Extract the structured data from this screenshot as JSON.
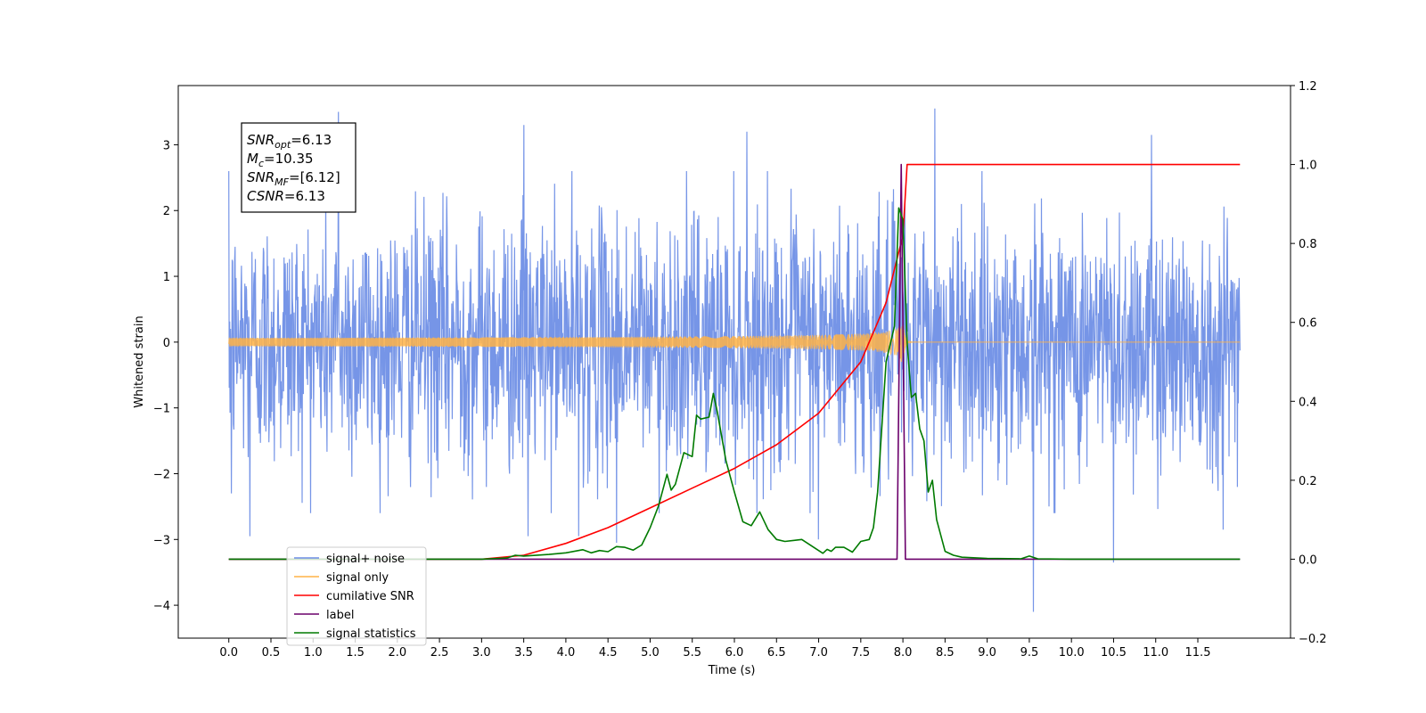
{
  "chart_data": {
    "type": "line",
    "xlabel": "Time (s)",
    "ylabel": "Whitened strain",
    "xlim": [
      -0.6,
      12.6
    ],
    "ylim": [
      -4.5,
      3.9
    ],
    "y2lim": [
      -0.2,
      1.2
    ],
    "x_ticks": [
      0.0,
      0.5,
      1.0,
      1.5,
      2.0,
      2.5,
      3.0,
      3.5,
      4.0,
      4.5,
      5.0,
      5.5,
      6.0,
      6.5,
      7.0,
      7.5,
      8.0,
      8.5,
      9.0,
      9.5,
      10.0,
      10.5,
      11.0,
      11.5
    ],
    "x_tick_labels": [
      "0.0",
      "0.5",
      "1.0",
      "1.5",
      "2.0",
      "2.5",
      "3.0",
      "3.5",
      "4.0",
      "4.5",
      "5.0",
      "5.5",
      "6.0",
      "6.5",
      "7.0",
      "7.5",
      "8.0",
      "8.5",
      "9.0",
      "9.5",
      "10.0",
      "10.5",
      "11.0",
      "11.5"
    ],
    "y_ticks": [
      -4,
      -3,
      -2,
      -1,
      0,
      1,
      2,
      3
    ],
    "y_tick_labels": [
      "−4",
      "−3",
      "−2",
      "−1",
      "0",
      "1",
      "2",
      "3"
    ],
    "y2_ticks": [
      -0.2,
      0.0,
      0.2,
      0.4,
      0.6,
      0.8,
      1.0,
      1.2
    ],
    "y2_tick_labels": [
      "−0.2",
      "0.0",
      "0.2",
      "0.4",
      "0.6",
      "0.8",
      "1.0",
      "1.2"
    ],
    "annotation": {
      "lines": [
        {
          "base": "SNR",
          "sub": "opt",
          "rest": "=6.13"
        },
        {
          "base": "M",
          "sub": "c",
          "rest": "=10.35"
        },
        {
          "base": "SNR",
          "sub": "MF",
          "rest": "=[6.12]"
        },
        {
          "base": "CSNR",
          "sub": "",
          "rest": "=6.13"
        }
      ]
    },
    "legend": {
      "placement": "lower-left",
      "entries": [
        "signal+ noise",
        "signal only",
        "cumilative SNR",
        "label",
        "signal statistics"
      ]
    },
    "series": [
      {
        "name": "signal+ noise",
        "axis": "left",
        "color": "#6f8fe6",
        "kind": "noise",
        "x_range": [
          0.0,
          12.0
        ],
        "envelope_max": 2.6,
        "envelope_min": -2.6,
        "spikes": [
          {
            "x": 0.03,
            "y": 2.4
          },
          {
            "x": 0.03,
            "y": -2.3
          },
          {
            "x": 0.25,
            "y": -2.95
          },
          {
            "x": 1.3,
            "y": 3.5
          },
          {
            "x": 3.5,
            "y": 3.3
          },
          {
            "x": 3.55,
            "y": -2.95
          },
          {
            "x": 4.15,
            "y": -2.95
          },
          {
            "x": 4.6,
            "y": -3.05
          },
          {
            "x": 6.15,
            "y": 3.2
          },
          {
            "x": 7.0,
            "y": -3.0
          },
          {
            "x": 8.38,
            "y": 3.55
          },
          {
            "x": 9.55,
            "y": -4.1
          },
          {
            "x": 10.5,
            "y": -3.35
          },
          {
            "x": 10.95,
            "y": 3.15
          },
          {
            "x": 11.8,
            "y": -2.85
          }
        ]
      },
      {
        "name": "signal only",
        "axis": "left",
        "color": "#ffb347",
        "kind": "chirp",
        "x_range": [
          0.0,
          12.0
        ],
        "merger_time": 8.0,
        "peak_amplitude": 0.35
      },
      {
        "name": "cumilative SNR",
        "axis": "right",
        "color": "#ff0000",
        "x": [
          0.0,
          3.0,
          3.5,
          4.0,
          4.5,
          5.0,
          5.5,
          6.0,
          6.5,
          7.0,
          7.5,
          7.8,
          8.0,
          8.05,
          12.0
        ],
        "y": [
          0.0,
          0.0,
          0.01,
          0.04,
          0.08,
          0.13,
          0.18,
          0.23,
          0.29,
          0.37,
          0.5,
          0.65,
          0.82,
          1.0,
          1.0
        ]
      },
      {
        "name": "label",
        "axis": "right",
        "color": "#6b006b",
        "x": [
          0.0,
          7.93,
          7.98,
          8.03,
          8.08,
          12.0
        ],
        "y": [
          0.0,
          0.0,
          1.0,
          0.0,
          0.0,
          0.0
        ]
      },
      {
        "name": "signal statistics",
        "axis": "right",
        "color": "#007a00",
        "x": [
          0.0,
          3.0,
          3.3,
          3.4,
          3.5,
          3.8,
          4.0,
          4.2,
          4.3,
          4.4,
          4.5,
          4.6,
          4.7,
          4.8,
          4.9,
          5.0,
          5.1,
          5.2,
          5.25,
          5.3,
          5.4,
          5.5,
          5.55,
          5.6,
          5.7,
          5.75,
          5.8,
          5.9,
          6.0,
          6.1,
          6.2,
          6.3,
          6.4,
          6.5,
          6.6,
          6.8,
          7.0,
          7.05,
          7.1,
          7.15,
          7.2,
          7.3,
          7.4,
          7.5,
          7.6,
          7.65,
          7.7,
          7.8,
          7.9,
          7.95,
          8.0,
          8.05,
          8.1,
          8.15,
          8.2,
          8.25,
          8.3,
          8.35,
          8.4,
          8.5,
          8.6,
          8.7,
          9.0,
          9.4,
          9.5,
          9.6,
          10.0,
          12.0
        ],
        "y": [
          0.0,
          0.0,
          0.003,
          0.01,
          0.008,
          0.012,
          0.016,
          0.024,
          0.016,
          0.022,
          0.019,
          0.032,
          0.03,
          0.023,
          0.036,
          0.08,
          0.135,
          0.215,
          0.175,
          0.19,
          0.27,
          0.26,
          0.365,
          0.355,
          0.36,
          0.42,
          0.37,
          0.25,
          0.17,
          0.095,
          0.085,
          0.12,
          0.075,
          0.05,
          0.045,
          0.05,
          0.022,
          0.015,
          0.025,
          0.02,
          0.03,
          0.03,
          0.018,
          0.045,
          0.05,
          0.08,
          0.17,
          0.5,
          0.59,
          0.89,
          0.86,
          0.55,
          0.41,
          0.42,
          0.33,
          0.3,
          0.17,
          0.2,
          0.1,
          0.02,
          0.01,
          0.005,
          0.002,
          0.001,
          0.008,
          0.001,
          0.0,
          0.0
        ]
      }
    ]
  }
}
